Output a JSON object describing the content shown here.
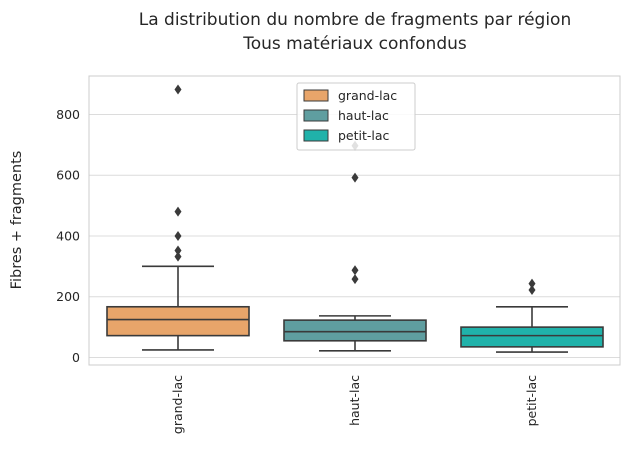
{
  "chart_data": {
    "type": "box",
    "title": [
      "La distribution du nombre de fragments par région",
      "Tous matériaux confondus"
    ],
    "xlabel": "",
    "ylabel": "Fibres + fragments",
    "ylim": [
      -25,
      930
    ],
    "yticks": [
      0,
      200,
      400,
      600,
      800
    ],
    "grid": "horizontal",
    "legend_position": "top-center",
    "categories": [
      "grand-lac",
      "haut-lac",
      "petit-lac"
    ],
    "series": [
      {
        "name": "grand-lac",
        "color": "#E8A56A",
        "whisker_low": 25,
        "q1": 72,
        "median": 125,
        "q3": 167,
        "whisker_high": 300,
        "outliers": [
          332,
          352,
          400,
          480,
          882
        ]
      },
      {
        "name": "haut-lac",
        "color": "#5F9EA0",
        "whisker_low": 22,
        "q1": 55,
        "median": 85,
        "q3": 123,
        "whisker_high": 137,
        "outliers": [
          258,
          287,
          592,
          697
        ]
      },
      {
        "name": "petit-lac",
        "color": "#20B2AA",
        "whisker_low": 18,
        "q1": 35,
        "median": 72,
        "q3": 100,
        "whisker_high": 167,
        "outliers": [
          222,
          243
        ]
      }
    ]
  }
}
